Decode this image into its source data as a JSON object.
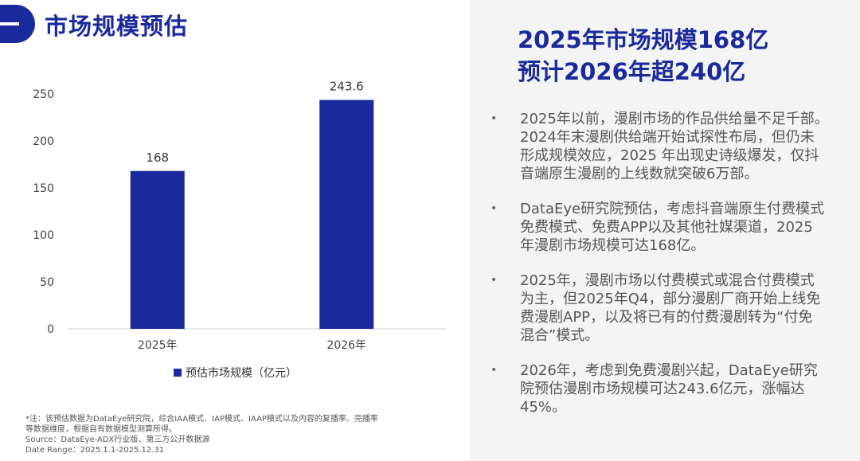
{
  "section": {
    "title": "市场规模预估"
  },
  "chart_data": {
    "type": "bar",
    "categories": [
      "2025年",
      "2026年"
    ],
    "series": [
      {
        "name": "预估市场规模（亿元）",
        "values": [
          168,
          243.6
        ]
      }
    ],
    "data_labels": [
      "168",
      "243.6"
    ],
    "yticks": [
      "0",
      "50",
      "100",
      "150",
      "200",
      "250"
    ],
    "ylim": [
      0,
      250
    ],
    "grid": false,
    "legend": "bottom",
    "color": "#1a2a9c"
  },
  "footnotes": [
    "*注：该预估数据为DataEye研究院，综合IAA模式、IAP模式、IAAP模式以及内容的复播率、完播率",
    "等数据维度，根据自有数据模型测算所得。",
    "Source：DataEye-ADX行业版、第三方公开数据源",
    "Date Range：2025.1.1-2025.12.31"
  ],
  "headline": {
    "line1": "2025年市场规模168亿",
    "line2": "预计2026年超240亿"
  },
  "bullets": [
    "2025年以前，漫剧市场的作品供给量不足千部。\n2024年末漫剧供给端开始试探性布局，但仍未\n形成规模效应，2025 年出现史诗级爆发，仅抖\n音端原生漫剧的上线数就突破6万部。",
    "DataEye研究院预估，考虑抖音端原生付费模式\n免费模式、免费APP以及其他社媒渠道，2025\n年漫剧市场规模可达168亿。",
    "2025年，漫剧市场以付费模式或混合付费模式\n为主，但2025年Q4，部分漫剧厂商开始上线免\n费漫剧APP，以及将已有的付费漫剧转为“付免\n混合”模式。",
    "2026年，考虑到免费漫剧兴起，DataEye研究\n院预估漫剧市场规模可达243.6亿元，涨幅达\n45%。"
  ],
  "colors": {
    "accent": "#1a2a9c",
    "panel": "#f4f4f4"
  }
}
